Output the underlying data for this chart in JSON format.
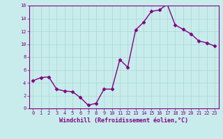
{
  "x": [
    0,
    1,
    2,
    3,
    4,
    5,
    6,
    7,
    8,
    9,
    10,
    11,
    12,
    13,
    14,
    15,
    16,
    17,
    18,
    19,
    20,
    21,
    22,
    23
  ],
  "y": [
    4.3,
    4.8,
    4.9,
    3.0,
    2.7,
    2.6,
    1.7,
    0.5,
    0.8,
    3.0,
    3.0,
    7.6,
    6.4,
    12.2,
    13.4,
    15.1,
    15.3,
    16.2,
    13.0,
    12.3,
    11.6,
    10.5,
    10.2,
    9.7
  ],
  "line_color": "#800080",
  "marker": "D",
  "marker_size": 2.5,
  "bg_color": "#c8ecec",
  "grid_color": "#b0d8d8",
  "xlabel": "Windchill (Refroidissement éolien,°C)",
  "xlabel_color": "#800080",
  "tick_color": "#800080",
  "spine_color": "#800080",
  "ylim": [
    0,
    16
  ],
  "xlim": [
    -0.5,
    23.5
  ],
  "yticks": [
    0,
    2,
    4,
    6,
    8,
    10,
    12,
    14,
    16
  ],
  "xticks": [
    0,
    1,
    2,
    3,
    4,
    5,
    6,
    7,
    8,
    9,
    10,
    11,
    12,
    13,
    14,
    15,
    16,
    17,
    18,
    19,
    20,
    21,
    22,
    23
  ],
  "tick_fontsize": 5.0,
  "xlabel_fontsize": 6.0,
  "linewidth": 1.0
}
